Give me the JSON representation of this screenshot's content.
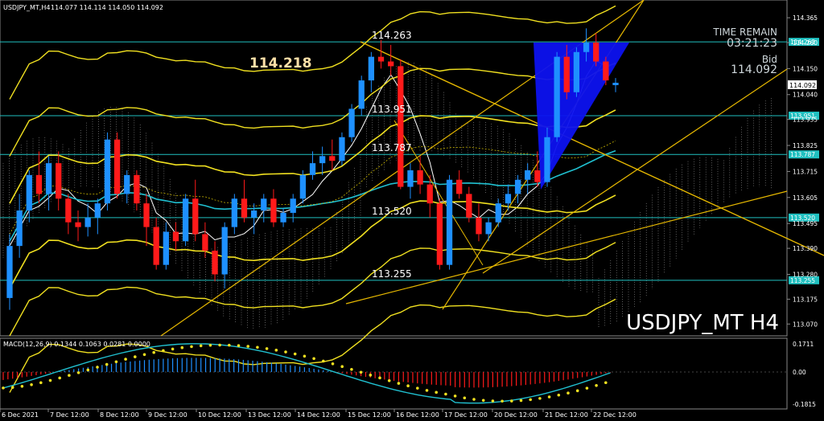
{
  "header": {
    "symbol": "USDJPY_MT,H4",
    "ohlc": "114.077 114.114 114.050 114.092"
  },
  "time_remain": {
    "label": "TIME REMAIN",
    "value": "03:21:23",
    "bid_label": "Bid",
    "bid_value": "114.092"
  },
  "big_price": "114.218",
  "watermark": "USDJPY_MT H4",
  "levels": [
    {
      "value": 114.263,
      "label": "114.263",
      "tag": "114.263"
    },
    {
      "value": 113.951,
      "label": "113.951",
      "tag": "113.951"
    },
    {
      "value": 113.787,
      "label": "113.787",
      "tag": "113.787"
    },
    {
      "value": 113.52,
      "label": "113.520",
      "tag": "113.520"
    },
    {
      "value": 113.255,
      "label": "113.255",
      "tag": "113.255"
    }
  ],
  "current_price_tag": "114.092",
  "chart_data": {
    "type": "candlestick",
    "y_ticks": [
      "114.365",
      "114.260",
      "114.150",
      "114.040",
      "113.935",
      "113.825",
      "113.715",
      "113.605",
      "113.495",
      "113.390",
      "113.280",
      "113.175",
      "113.070"
    ],
    "x_ticks": [
      "6 Dec 2021",
      "7 Dec 12:00",
      "8 Dec 12:00",
      "9 Dec 12:00",
      "10 Dec 12:00",
      "13 Dec 12:00",
      "14 Dec 12:00",
      "15 Dec 12:00",
      "16 Dec 12:00",
      "17 Dec 12:00",
      "20 Dec 12:00",
      "21 Dec 12:00",
      "22 Dec 12:00"
    ],
    "ylim": [
      113.02,
      114.44
    ],
    "candles": [
      [
        113.18,
        113.45,
        113.13,
        113.4
      ],
      [
        113.4,
        113.62,
        113.35,
        113.55
      ],
      [
        113.55,
        113.72,
        113.5,
        113.7
      ],
      [
        113.7,
        113.8,
        113.58,
        113.62
      ],
      [
        113.62,
        113.78,
        113.55,
        113.75
      ],
      [
        113.75,
        113.8,
        113.55,
        113.6
      ],
      [
        113.6,
        113.62,
        113.45,
        113.5
      ],
      [
        113.5,
        113.55,
        113.42,
        113.48
      ],
      [
        113.48,
        113.58,
        113.44,
        113.52
      ],
      [
        113.52,
        113.6,
        113.45,
        113.58
      ],
      [
        113.58,
        113.88,
        113.55,
        113.85
      ],
      [
        113.85,
        113.88,
        113.6,
        113.62
      ],
      [
        113.62,
        113.72,
        113.58,
        113.7
      ],
      [
        113.7,
        113.72,
        113.55,
        113.58
      ],
      [
        113.58,
        113.62,
        113.4,
        113.48
      ],
      [
        113.48,
        113.52,
        113.3,
        113.32
      ],
      [
        113.32,
        113.5,
        113.3,
        113.46
      ],
      [
        113.46,
        113.5,
        113.38,
        113.42
      ],
      [
        113.42,
        113.62,
        113.4,
        113.6
      ],
      [
        113.6,
        113.68,
        113.42,
        113.45
      ],
      [
        113.45,
        113.5,
        113.35,
        113.38
      ],
      [
        113.38,
        113.42,
        113.25,
        113.28
      ],
      [
        113.28,
        113.5,
        113.22,
        113.48
      ],
      [
        113.48,
        113.62,
        113.45,
        113.6
      ],
      [
        113.6,
        113.68,
        113.5,
        113.52
      ],
      [
        113.52,
        113.58,
        113.45,
        113.55
      ],
      [
        113.55,
        113.62,
        113.5,
        113.6
      ],
      [
        113.6,
        113.64,
        113.48,
        113.5
      ],
      [
        113.5,
        113.56,
        113.48,
        113.54
      ],
      [
        113.54,
        113.62,
        113.5,
        113.6
      ],
      [
        113.6,
        113.72,
        113.58,
        113.7
      ],
      [
        113.7,
        113.8,
        113.68,
        113.75
      ],
      [
        113.75,
        113.82,
        113.7,
        113.78
      ],
      [
        113.78,
        113.85,
        113.72,
        113.76
      ],
      [
        113.76,
        113.88,
        113.74,
        113.86
      ],
      [
        113.86,
        114.0,
        113.84,
        113.98
      ],
      [
        113.98,
        114.12,
        113.95,
        114.1
      ],
      [
        114.1,
        114.22,
        114.05,
        114.2
      ],
      [
        114.2,
        114.27,
        114.15,
        114.18
      ],
      [
        114.18,
        114.25,
        114.12,
        114.16
      ],
      [
        114.16,
        114.19,
        113.64,
        113.65
      ],
      [
        113.65,
        113.75,
        113.6,
        113.72
      ],
      [
        113.72,
        113.78,
        113.62,
        113.66
      ],
      [
        113.66,
        113.7,
        113.52,
        113.58
      ],
      [
        113.58,
        113.6,
        113.3,
        113.32
      ],
      [
        113.32,
        113.7,
        113.3,
        113.68
      ],
      [
        113.68,
        113.72,
        113.6,
        113.62
      ],
      [
        113.62,
        113.65,
        113.5,
        113.52
      ],
      [
        113.52,
        113.58,
        113.42,
        113.45
      ],
      [
        113.45,
        113.52,
        113.42,
        113.5
      ],
      [
        113.5,
        113.6,
        113.48,
        113.58
      ],
      [
        113.58,
        113.66,
        113.55,
        113.62
      ],
      [
        113.62,
        113.7,
        113.58,
        113.68
      ],
      [
        113.68,
        113.75,
        113.62,
        113.72
      ],
      [
        113.72,
        113.8,
        113.65,
        113.67
      ],
      [
        113.67,
        113.9,
        113.65,
        113.86
      ],
      [
        113.86,
        114.22,
        113.84,
        114.2
      ],
      [
        114.2,
        114.25,
        114.02,
        114.05
      ],
      [
        114.05,
        114.24,
        114.03,
        114.22
      ],
      [
        114.22,
        114.32,
        114.18,
        114.26
      ],
      [
        114.26,
        114.3,
        114.16,
        114.18
      ],
      [
        114.18,
        114.2,
        114.08,
        114.1
      ],
      [
        114.08,
        114.11,
        114.05,
        114.09
      ]
    ],
    "macd": {
      "label": "MACD(12,26,9) 0.1344 0.1063 0.0281 0.0000",
      "y_ticks": [
        "0.1711",
        "0.00",
        "-0.1815"
      ]
    }
  }
}
